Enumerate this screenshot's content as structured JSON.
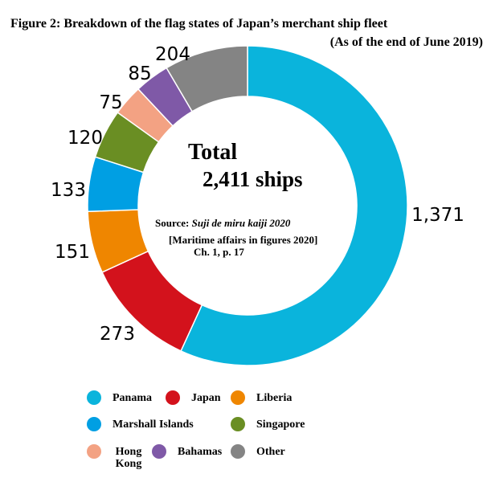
{
  "title": "Figure 2: Breakdown of the flag states of Japan’s merchant ship fleet",
  "subtitle": "(As of the end of June 2019)",
  "total": {
    "label": "Total",
    "value": "2,411 ships"
  },
  "source": {
    "prefix": "Source: ",
    "title_italic": "Suji de miru kaiji 2020",
    "translation": "[Maritime affairs in figures 2020]",
    "reference": "Ch. 1, p. 17"
  },
  "chart_data": {
    "type": "pie",
    "style": "donut",
    "total": 2411,
    "series": [
      {
        "name": "Panama",
        "value": 1371,
        "label": "1,371",
        "color": "#0ab4dc"
      },
      {
        "name": "Japan",
        "value": 273,
        "label": "273",
        "color": "#d3121c"
      },
      {
        "name": "Liberia",
        "value": 151,
        "label": "151",
        "color": "#ef8600"
      },
      {
        "name": "Marshall Islands",
        "value": 133,
        "label": "133",
        "color": "#009fe3"
      },
      {
        "name": "Singapore",
        "value": 120,
        "label": "120",
        "color": "#6a8e23"
      },
      {
        "name": "Hong Kong",
        "value": 75,
        "label": "75",
        "color": "#f3a283"
      },
      {
        "name": "Bahamas",
        "value": 85,
        "label": "85",
        "color": "#7f59a7"
      },
      {
        "name": "Other",
        "value": 204,
        "label": "204",
        "color": "#848484"
      }
    ],
    "legend": {
      "position": "bottom",
      "rows": [
        [
          "Panama",
          "Japan",
          "Liberia"
        ],
        [
          "Marshall Islands",
          "Singapore"
        ],
        [
          "Hong Kong",
          "Bahamas",
          "Other"
        ]
      ]
    }
  }
}
